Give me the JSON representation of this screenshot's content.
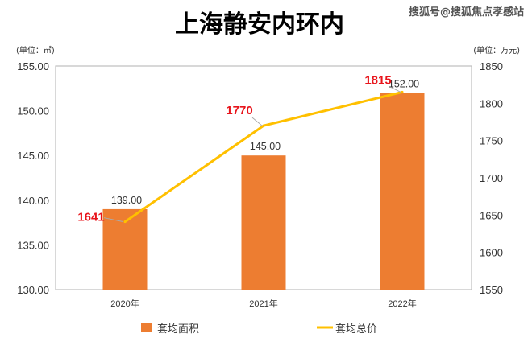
{
  "watermark": "搜狐号@搜狐焦点孝感站",
  "chart_data": {
    "type": "bar+line",
    "title": "上海静安内环内",
    "categories": [
      "2020年",
      "2021年",
      "2022年"
    ],
    "left_axis": {
      "unit_label": "(单位：㎡)",
      "ylim": [
        130,
        155
      ],
      "ticks": [
        "130.00",
        "135.00",
        "140.00",
        "145.00",
        "150.00",
        "155.00"
      ]
    },
    "right_axis": {
      "unit_label": "(单位：万元)",
      "ylim": [
        1550,
        1850
      ],
      "ticks": [
        "1550",
        "1600",
        "1650",
        "1700",
        "1750",
        "1800",
        "1850"
      ]
    },
    "series": [
      {
        "name": "套均面积",
        "type": "bar",
        "axis": "left",
        "color": "#ed7d31",
        "values": [
          139,
          145,
          152
        ],
        "labels": [
          "139.00",
          "145.00",
          "152.00"
        ]
      },
      {
        "name": "套均总价",
        "type": "line",
        "axis": "right",
        "color": "#ffc000",
        "values": [
          1641,
          1770,
          1815
        ],
        "labels": [
          "1641",
          "1770",
          "1815"
        ],
        "label_color": "#e8141b"
      }
    ],
    "grid": false,
    "legend": "bottom"
  }
}
